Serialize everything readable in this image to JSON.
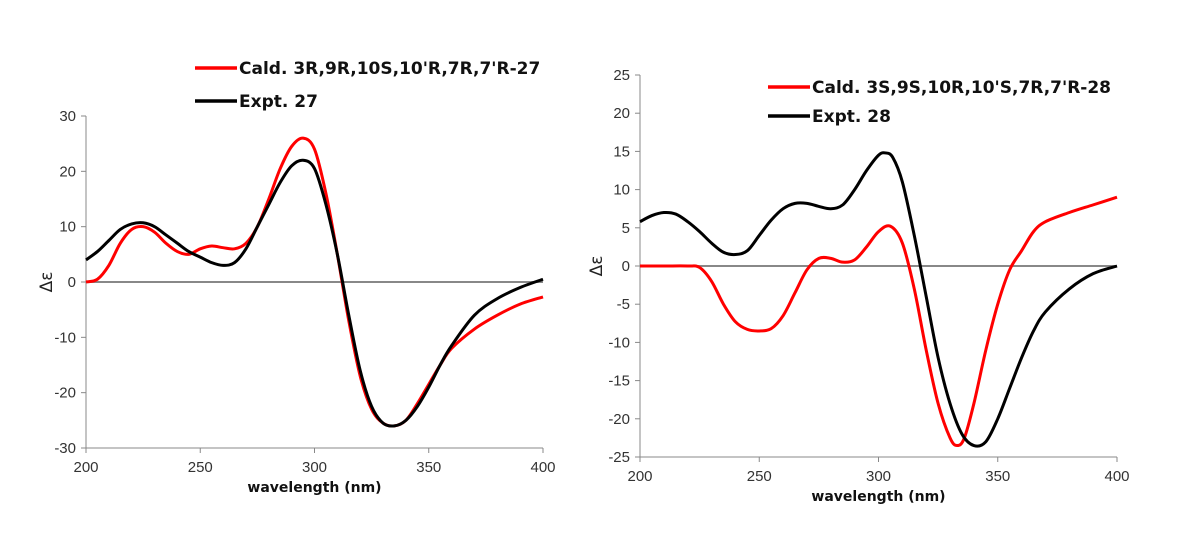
{
  "chart_data": [
    {
      "type": "line",
      "xlabel": "wavelength (nm)",
      "ylabel": "Δε",
      "xlim": [
        200,
        400
      ],
      "ylim": [
        -30,
        30
      ],
      "xticks": [
        200,
        250,
        300,
        350,
        400
      ],
      "yticks": [
        30,
        20,
        10,
        0,
        -10,
        -20,
        -30
      ],
      "legend_position": "top-right",
      "series": [
        {
          "name": "Cald. 3R,9R,10S,10'R,7R,7'R-27",
          "color": "#ff0000",
          "x": [
            200,
            205,
            210,
            215,
            220,
            225,
            230,
            235,
            240,
            245,
            250,
            255,
            260,
            265,
            270,
            275,
            280,
            285,
            290,
            295,
            300,
            305,
            310,
            315,
            320,
            325,
            330,
            335,
            340,
            345,
            350,
            355,
            360,
            370,
            380,
            390,
            400
          ],
          "y": [
            0,
            0.5,
            3,
            7,
            9.5,
            10,
            9,
            7,
            5.5,
            5,
            6,
            6.5,
            6.2,
            6,
            7,
            10,
            15,
            20.5,
            24.5,
            26,
            24,
            16,
            5,
            -7,
            -17,
            -23,
            -25.5,
            -26,
            -25,
            -22,
            -18.5,
            -15,
            -12,
            -8.5,
            -6,
            -4,
            -2.7
          ]
        },
        {
          "name": "Expt. 27",
          "color": "#000000",
          "x": [
            200,
            205,
            210,
            215,
            220,
            225,
            230,
            235,
            240,
            245,
            250,
            255,
            260,
            265,
            270,
            275,
            280,
            285,
            290,
            295,
            300,
            305,
            310,
            315,
            320,
            325,
            330,
            335,
            340,
            345,
            350,
            355,
            360,
            370,
            380,
            390,
            400
          ],
          "y": [
            4,
            5.5,
            7.5,
            9.5,
            10.5,
            10.7,
            10,
            8.5,
            7,
            5.5,
            4.5,
            3.5,
            3,
            3.5,
            6,
            10,
            14,
            18,
            21,
            22,
            20.5,
            14,
            5,
            -6,
            -16,
            -22.5,
            -25.5,
            -26,
            -25,
            -22.5,
            -19,
            -15,
            -11.5,
            -6,
            -3,
            -1,
            0.5
          ]
        }
      ]
    },
    {
      "type": "line",
      "xlabel": "wavelength (nm)",
      "ylabel": "Δε",
      "xlim": [
        200,
        400
      ],
      "ylim": [
        -25,
        25
      ],
      "xticks": [
        200,
        250,
        300,
        350,
        400
      ],
      "yticks": [
        25,
        20,
        15,
        10,
        5,
        0,
        -5,
        -10,
        -15,
        -20,
        -25
      ],
      "legend_position": "top-right",
      "series": [
        {
          "name": "Cald. 3S,9S,10R,10'S,7R,7'R-28",
          "color": "#ff0000",
          "x": [
            200,
            210,
            220,
            225,
            230,
            235,
            240,
            245,
            250,
            255,
            260,
            265,
            270,
            275,
            280,
            285,
            290,
            295,
            300,
            305,
            310,
            315,
            320,
            325,
            330,
            333,
            336,
            340,
            345,
            350,
            355,
            360,
            365,
            370,
            380,
            390,
            400
          ],
          "y": [
            0,
            0,
            0,
            -0.2,
            -2,
            -5,
            -7.3,
            -8.3,
            -8.5,
            -8.2,
            -6.5,
            -3.5,
            -0.5,
            1,
            1,
            0.5,
            0.8,
            2.5,
            4.5,
            5.2,
            3,
            -3,
            -11,
            -18,
            -22.5,
            -23.5,
            -22.5,
            -18,
            -11,
            -5,
            -0.5,
            2,
            4.5,
            5.8,
            7,
            8,
            9
          ]
        },
        {
          "name": "Expt. 28",
          "color": "#000000",
          "x": [
            200,
            205,
            210,
            215,
            220,
            225,
            230,
            235,
            240,
            245,
            250,
            255,
            260,
            265,
            270,
            275,
            280,
            285,
            290,
            295,
            300,
            303,
            306,
            310,
            315,
            320,
            325,
            330,
            335,
            340,
            345,
            350,
            355,
            360,
            365,
            370,
            380,
            390,
            400
          ],
          "y": [
            5.8,
            6.6,
            7,
            6.8,
            5.8,
            4.5,
            3,
            1.8,
            1.5,
            2,
            4,
            6,
            7.5,
            8.2,
            8.2,
            7.8,
            7.5,
            8,
            10,
            12.5,
            14.5,
            14.8,
            14.2,
            11,
            4,
            -4,
            -12,
            -18,
            -22,
            -23.5,
            -23,
            -20,
            -16,
            -12,
            -8.5,
            -6,
            -3,
            -1,
            0
          ]
        }
      ]
    }
  ]
}
